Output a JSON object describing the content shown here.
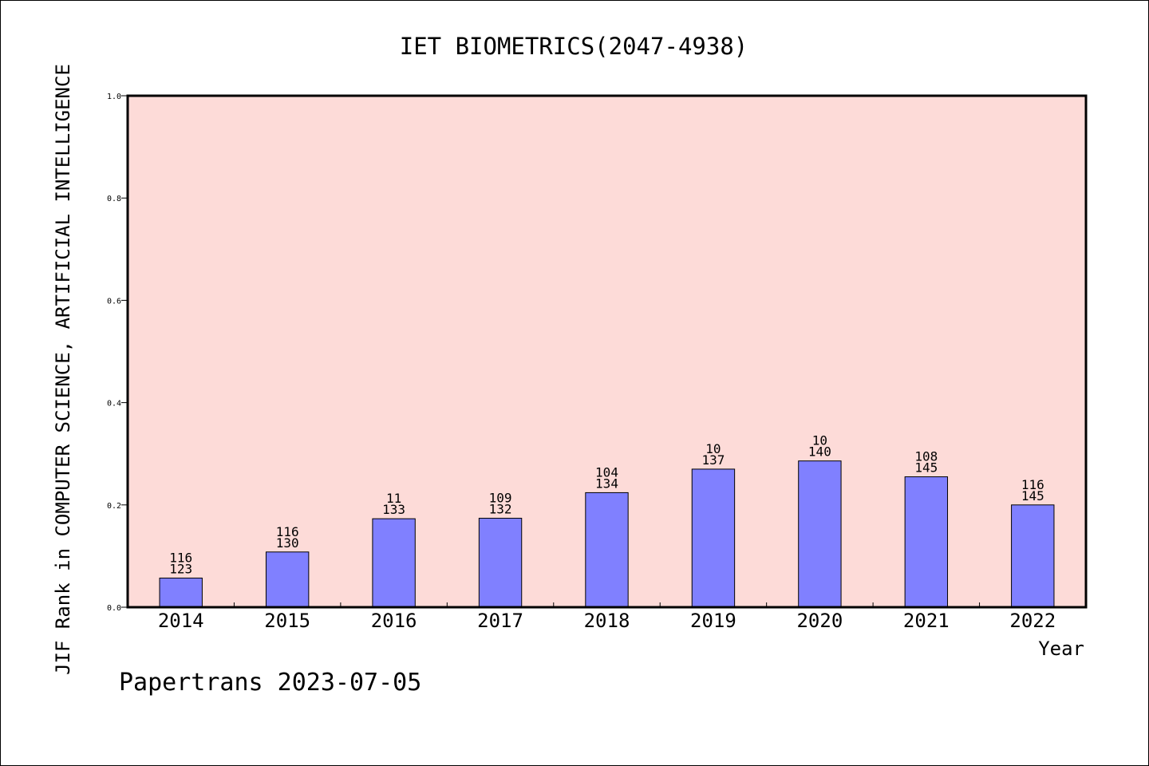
{
  "chart_data": {
    "type": "bar",
    "title": "IET BIOMETRICS(2047-4938)",
    "xlabel": "Year",
    "ylabel": "JIF Rank in COMPUTER SCIENCE, ARTIFICIAL INTELLIGENCE",
    "ylim": [
      0,
      1
    ],
    "yticks": [
      "0.0",
      "0.2",
      "0.4",
      "0.6",
      "0.8",
      "1.0"
    ],
    "grid": false,
    "categories": [
      "2014",
      "2015",
      "2016",
      "2017",
      "2018",
      "2019",
      "2020",
      "2021",
      "2022"
    ],
    "values": [
      0.057,
      0.108,
      0.173,
      0.174,
      0.224,
      0.27,
      0.286,
      0.255,
      0.2
    ],
    "label_top": [
      "116",
      "116",
      "11",
      "109",
      "104",
      "10",
      "10",
      "108",
      "116"
    ],
    "label_bottom": [
      "123",
      "130",
      "133",
      "132",
      "134",
      "137",
      "140",
      "145",
      "145"
    ],
    "colors": {
      "plot_background": "#fddbd8",
      "bar_fill": "#8080ff",
      "bar_stroke": "#000000",
      "axis": "#000000"
    }
  },
  "footer": {
    "credit": "Papertrans 2023-07-05"
  }
}
